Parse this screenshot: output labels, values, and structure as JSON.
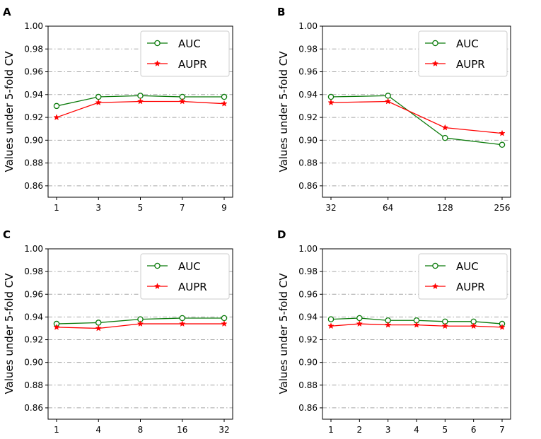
{
  "colors": {
    "auc": "#0a7a0a",
    "aupr": "#ff0000",
    "grid": "#a8a8a8",
    "axis": "#000000"
  },
  "chart_data": [
    {
      "panel": "A",
      "type": "line",
      "ylabel": "Values under 5-fold CV",
      "ylim": [
        0.85,
        1.0
      ],
      "yticks": [
        "0.86",
        "0.88",
        "0.90",
        "0.92",
        "0.94",
        "0.96",
        "0.98",
        "1.00"
      ],
      "categories": [
        "1",
        "3",
        "5",
        "7",
        "9"
      ],
      "legend": [
        "AUC",
        "AUPR"
      ],
      "legend_position": "top-right",
      "series": [
        {
          "name": "AUC",
          "values": [
            0.93,
            0.938,
            0.939,
            0.938,
            0.938
          ]
        },
        {
          "name": "AUPR",
          "values": [
            0.92,
            0.933,
            0.934,
            0.934,
            0.932
          ]
        }
      ]
    },
    {
      "panel": "B",
      "type": "line",
      "ylabel": "Values under 5-fold CV",
      "ylim": [
        0.85,
        1.0
      ],
      "yticks": [
        "0.86",
        "0.88",
        "0.90",
        "0.92",
        "0.94",
        "0.96",
        "0.98",
        "1.00"
      ],
      "categories": [
        "32",
        "64",
        "128",
        "256"
      ],
      "legend": [
        "AUC",
        "AUPR"
      ],
      "legend_position": "top-right",
      "series": [
        {
          "name": "AUC",
          "values": [
            0.938,
            0.939,
            0.902,
            0.896
          ]
        },
        {
          "name": "AUPR",
          "values": [
            0.933,
            0.934,
            0.911,
            0.906
          ]
        }
      ]
    },
    {
      "panel": "C",
      "type": "line",
      "ylabel": "Values under 5-fold CV",
      "ylim": [
        0.85,
        1.0
      ],
      "yticks": [
        "0.86",
        "0.88",
        "0.90",
        "0.92",
        "0.94",
        "0.96",
        "0.98",
        "1.00"
      ],
      "categories": [
        "1",
        "4",
        "8",
        "16",
        "32"
      ],
      "legend": [
        "AUC",
        "AUPR"
      ],
      "legend_position": "top-right",
      "series": [
        {
          "name": "AUC",
          "values": [
            0.934,
            0.935,
            0.938,
            0.939,
            0.939
          ]
        },
        {
          "name": "AUPR",
          "values": [
            0.931,
            0.93,
            0.934,
            0.934,
            0.934
          ]
        }
      ]
    },
    {
      "panel": "D",
      "type": "line",
      "ylabel": "Values under 5-fold CV",
      "ylim": [
        0.85,
        1.0
      ],
      "yticks": [
        "0.86",
        "0.88",
        "0.90",
        "0.92",
        "0.94",
        "0.96",
        "0.98",
        "1.00"
      ],
      "categories": [
        "1",
        "2",
        "3",
        "4",
        "5",
        "6",
        "7"
      ],
      "legend": [
        "AUC",
        "AUPR"
      ],
      "legend_position": "top-right",
      "series": [
        {
          "name": "AUC",
          "values": [
            0.938,
            0.939,
            0.937,
            0.937,
            0.936,
            0.936,
            0.934
          ]
        },
        {
          "name": "AUPR",
          "values": [
            0.932,
            0.934,
            0.933,
            0.933,
            0.932,
            0.932,
            0.931
          ]
        }
      ]
    }
  ]
}
